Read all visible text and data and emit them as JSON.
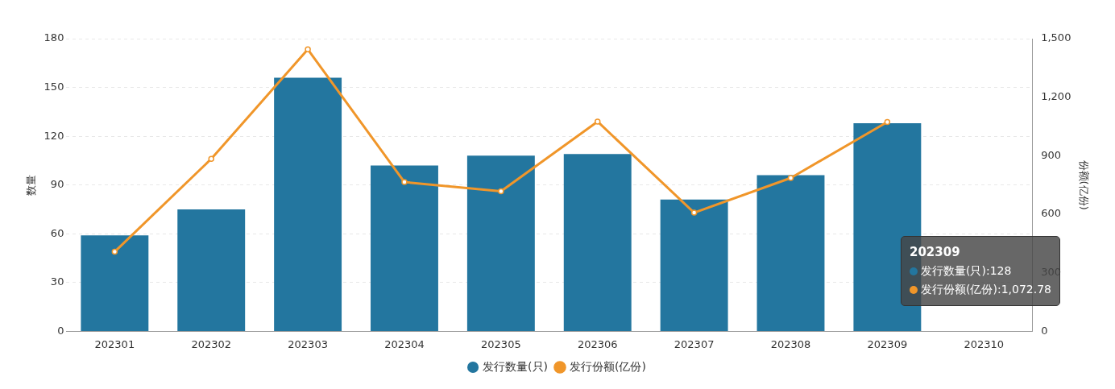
{
  "chart_data": {
    "type": "bar",
    "categories": [
      "202301",
      "202302",
      "202303",
      "202304",
      "202305",
      "202306",
      "202307",
      "202308",
      "202309",
      "202310"
    ],
    "series": [
      {
        "name": "发行数量(只)",
        "color": "#23769f",
        "values": [
          59,
          75,
          156,
          102,
          108,
          109,
          81,
          96,
          128,
          null
        ]
      },
      {
        "name": "发行份额(亿份)",
        "type": "line",
        "axis": "y2",
        "color": "#f0962a",
        "values": [
          408,
          884,
          1445,
          765,
          718,
          1075,
          608,
          786,
          1072.78,
          null
        ]
      }
    ],
    "ylabel": "数量",
    "y2label": "份额(亿份)",
    "ylim": [
      0,
      180
    ],
    "yticks": [
      0,
      30,
      60,
      90,
      120,
      150,
      180
    ],
    "y2lim": [
      0,
      1500
    ],
    "y2ticks": [
      0,
      300,
      600,
      900,
      {
        "value": 1200,
        "label": "1,200"
      },
      {
        "value": 1500,
        "label": "1,500"
      }
    ],
    "grid": "y",
    "legend": "bottom",
    "marker": "circle",
    "line_style": "solid",
    "annotations": [
      "202309",
      "发行数量(只):128",
      "发行份额(亿份):1,072.78"
    ]
  }
}
